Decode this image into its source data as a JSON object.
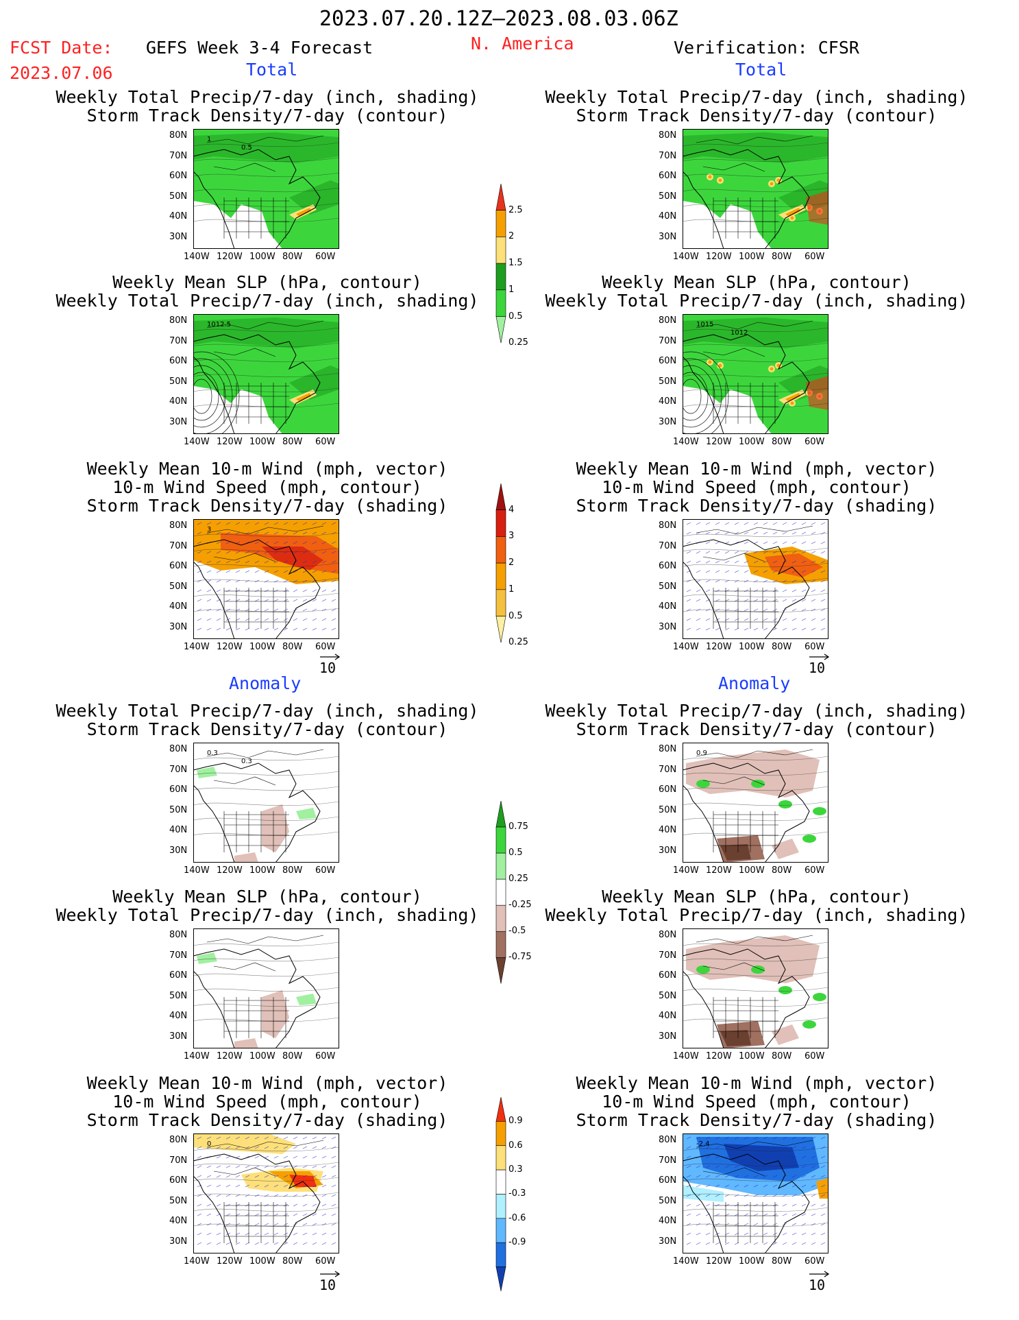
{
  "header": {
    "date_range": "2023.07.20.12Z–2023.08.03.06Z",
    "fcst_date_label": "FCST Date:",
    "fcst_date": "2023.07.06",
    "forecast_name": "GEFS Week 3-4 Forecast",
    "region": "N. America",
    "verification": "Verification: CFSR"
  },
  "sections": {
    "total_left": "Total",
    "total_right": "Total",
    "anomaly_left": "Anomaly",
    "anomaly_right": "Anomaly"
  },
  "titles": {
    "precip_std": [
      "Weekly Total Precip/7-day (inch, shading)",
      "Storm Track Density/7-day (contour)"
    ],
    "slp_precip": [
      "Weekly Mean SLP (hPa, contour)",
      "Weekly Total Precip/7-day (inch, shading)"
    ],
    "wind": [
      "Weekly Mean 10-m Wind (mph, vector)",
      "10-m Wind Speed (mph, contour)",
      "Storm Track Density/7-day (shading)"
    ]
  },
  "axes": {
    "lat_ticks": [
      "80N",
      "70N",
      "60N",
      "50N",
      "40N",
      "30N"
    ],
    "lon_ticks": [
      "140W",
      "120W",
      "100W",
      "80W",
      "60W"
    ]
  },
  "vector_ref": "10",
  "contour_labels": {
    "p1": [
      "1",
      "0.5"
    ],
    "p2": [
      "1012.5"
    ],
    "p4": [
      "1015",
      "1012"
    ],
    "p5": [
      "3"
    ],
    "p7": [
      "0.3",
      "0.3"
    ],
    "p8": [
      "0.9"
    ],
    "p11": [
      "0"
    ],
    "p12": [
      "-2.4"
    ]
  },
  "colorbars": {
    "precip_total": {
      "labels": [
        "2.5",
        "2",
        "1.5",
        "1",
        "0.5",
        "0.25"
      ],
      "colors": [
        "#e8321e",
        "#f5a000",
        "#fde07a",
        "#1e9e1e",
        "#3cd63c",
        "#a0f0a0"
      ]
    },
    "std_total": {
      "labels": [
        "4",
        "3",
        "2",
        "1",
        "0.5",
        "0.25"
      ],
      "colors": [
        "#a01010",
        "#d82010",
        "#f06010",
        "#f5a000",
        "#f5c040",
        "#fdf0a0"
      ]
    },
    "precip_anom": {
      "labels": [
        "0.75",
        "0.5",
        "0.25",
        "-0.25",
        "-0.5",
        "-0.75"
      ],
      "colors": [
        "#1e9e1e",
        "#3cd63c",
        "#a0f0a0",
        "#ffffff",
        "#e0c0b8",
        "#a07060",
        "#6a4030"
      ]
    },
    "std_anom": {
      "labels": [
        "0.9",
        "0.6",
        "0.3",
        "-0.3",
        "-0.6",
        "-0.9"
      ],
      "colors": [
        "#f03010",
        "#f5a000",
        "#fde07a",
        "#ffffff",
        "#b0f0ff",
        "#60b8ff",
        "#2070e0",
        "#1040b0"
      ]
    }
  },
  "legend_colors": {
    "land_line": "#000000",
    "wind_vectors": "#2a2ad0",
    "ocean_green": "#3cd63c",
    "dark_green": "#1e9e1e",
    "light_green": "#a0f0a0"
  }
}
